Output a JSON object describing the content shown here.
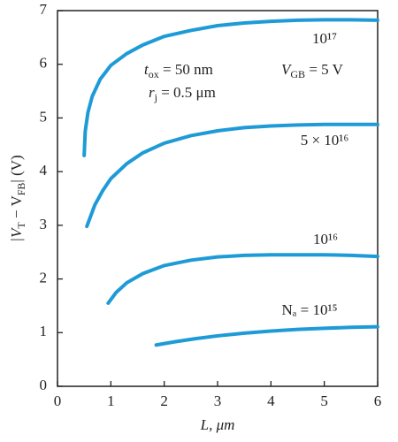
{
  "chart_data": {
    "type": "line",
    "xlabel": "L, μm",
    "ylabel_parts": [
      {
        "text": "|V"
      },
      {
        "text": "T",
        "sub": true
      },
      {
        "text": " − V"
      },
      {
        "text": "FB",
        "sub": true
      },
      {
        "text": "| (V)"
      }
    ],
    "xlim": [
      0,
      6
    ],
    "xticks": [
      0,
      1,
      2,
      3,
      4,
      5,
      6
    ],
    "ylim": [
      0,
      7
    ],
    "yticks": [
      0,
      1,
      2,
      3,
      4,
      5,
      6,
      7
    ],
    "grid": false,
    "series": [
      {
        "name": "10¹⁷",
        "color": "#1e9bd7",
        "x": [
          0.5,
          0.52,
          0.57,
          0.65,
          0.8,
          1,
          1.3,
          1.6,
          2,
          2.5,
          3,
          3.5,
          4,
          4.5,
          5,
          5.5,
          6
        ],
        "values": [
          4.3,
          4.75,
          5.1,
          5.4,
          5.72,
          5.98,
          6.2,
          6.36,
          6.52,
          6.63,
          6.72,
          6.77,
          6.8,
          6.82,
          6.83,
          6.83,
          6.82
        ]
      },
      {
        "name": "5 × 10¹⁶",
        "color": "#1e9bd7",
        "x": [
          0.55,
          0.7,
          0.85,
          1,
          1.3,
          1.6,
          2,
          2.5,
          3,
          3.5,
          4,
          4.5,
          5,
          5.5,
          6
        ],
        "values": [
          2.98,
          3.38,
          3.65,
          3.87,
          4.15,
          4.35,
          4.53,
          4.67,
          4.76,
          4.82,
          4.85,
          4.87,
          4.88,
          4.88,
          4.88
        ]
      },
      {
        "name": "10¹⁶",
        "color": "#1e9bd7",
        "x": [
          0.95,
          1.1,
          1.3,
          1.6,
          2,
          2.5,
          3,
          3.5,
          4,
          4.5,
          5,
          5.5,
          6
        ],
        "values": [
          1.55,
          1.75,
          1.93,
          2.1,
          2.25,
          2.35,
          2.41,
          2.44,
          2.45,
          2.45,
          2.45,
          2.44,
          2.42
        ]
      },
      {
        "name": "Nₐ = 10¹⁵",
        "color": "#1e9bd7",
        "x": [
          1.85,
          2.2,
          2.6,
          3,
          3.5,
          4,
          4.5,
          5,
          5.5,
          6
        ],
        "values": [
          0.77,
          0.83,
          0.89,
          0.94,
          0.99,
          1.03,
          1.06,
          1.08,
          1.1,
          1.11
        ]
      }
    ],
    "annotations": [
      {
        "parts": [
          {
            "text": "t"
          },
          {
            "text": "ox",
            "sub": true
          },
          {
            "text": " = 50 nm"
          }
        ]
      },
      {
        "parts": [
          {
            "text": "r"
          },
          {
            "text": "j",
            "sub": true
          },
          {
            "text": " = 0.5 μm"
          }
        ]
      },
      {
        "parts": [
          {
            "text": "V"
          },
          {
            "text": "GB",
            "sub": true
          },
          {
            "text": " = 5 V"
          }
        ]
      }
    ]
  }
}
